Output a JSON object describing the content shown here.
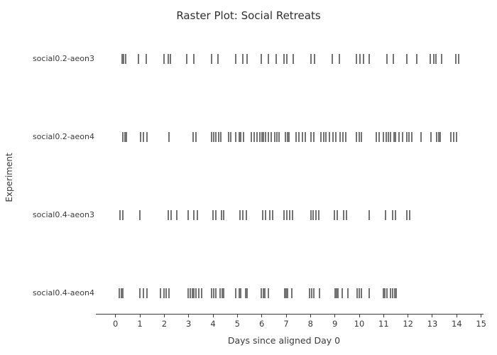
{
  "title": "Raster Plot: Social Retreats",
  "colors": {
    "background": "#ffffff",
    "text": "#3a3a3a",
    "mark": "#282828",
    "spine": "#3a3a3a"
  },
  "chart_data": {
    "type": "scatter",
    "variant": "raster-eventplot",
    "title": "Raster Plot: Social Retreats",
    "xlabel": "Days since aligned Day 0",
    "ylabel": "Experiment",
    "xlim": [
      0,
      15
    ],
    "xticks": [
      0,
      1,
      2,
      3,
      4,
      5,
      6,
      7,
      8,
      9,
      10,
      11,
      12,
      13,
      14,
      15
    ],
    "grid": false,
    "legend": false,
    "series": [
      {
        "name": "social0.2-aeon3",
        "events": [
          0.28,
          0.34,
          0.42,
          0.95,
          1.25,
          1.98,
          2.15,
          2.25,
          2.92,
          3.2,
          3.95,
          4.2,
          4.92,
          5.23,
          5.41,
          5.99,
          6.28,
          6.6,
          6.92,
          7.02,
          7.3,
          8.03,
          8.17,
          8.9,
          9.19,
          9.87,
          10.02,
          10.18,
          10.41,
          11.13,
          11.41,
          11.96,
          12.35,
          12.9,
          13.05,
          13.16,
          13.39,
          13.95,
          14.07
        ]
      },
      {
        "name": "social0.2-aeon4",
        "events": [
          0.31,
          0.38,
          0.45,
          1.02,
          1.14,
          1.28,
          2.2,
          3.17,
          3.29,
          3.93,
          4.02,
          4.12,
          4.22,
          4.31,
          4.63,
          4.73,
          4.92,
          5.07,
          5.15,
          5.24,
          5.58,
          5.7,
          5.81,
          5.91,
          6.0,
          6.08,
          6.16,
          6.28,
          6.4,
          6.53,
          6.62,
          6.72,
          6.96,
          7.05,
          7.11,
          7.4,
          7.52,
          7.66,
          7.79,
          8.03,
          8.15,
          8.42,
          8.53,
          8.64,
          8.78,
          8.92,
          9.05,
          9.21,
          9.34,
          9.46,
          9.87,
          9.99,
          10.1,
          10.7,
          10.82,
          10.99,
          11.11,
          11.2,
          11.28,
          11.42,
          11.5,
          11.63,
          11.77,
          11.96,
          12.05,
          12.15,
          12.54,
          12.93,
          13.17,
          13.25,
          13.32,
          13.75,
          13.88,
          14.0
        ]
      },
      {
        "name": "social0.4-aeon3",
        "events": [
          0.19,
          0.31,
          0.99,
          2.15,
          2.27,
          2.52,
          2.98,
          3.22,
          3.37,
          4.0,
          4.11,
          4.34,
          4.45,
          5.1,
          5.21,
          5.36,
          6.04,
          6.16,
          6.33,
          6.45,
          6.91,
          7.04,
          7.15,
          7.27,
          8.01,
          8.11,
          8.22,
          8.34,
          8.98,
          9.09,
          9.37,
          9.49,
          10.41,
          11.08,
          11.38,
          11.48,
          11.96,
          12.06
        ]
      },
      {
        "name": "social0.4-aeon4",
        "events": [
          0.16,
          0.24,
          0.31,
          0.99,
          1.14,
          1.28,
          1.83,
          1.99,
          2.09,
          2.18,
          2.98,
          3.07,
          3.15,
          3.22,
          3.29,
          3.42,
          3.54,
          3.95,
          4.04,
          4.12,
          4.29,
          4.37,
          4.43,
          4.92,
          5.07,
          5.15,
          5.34,
          5.41,
          5.99,
          6.07,
          6.13,
          6.28,
          6.93,
          7.0,
          7.07,
          7.23,
          7.95,
          8.05,
          8.15,
          8.37,
          9.0,
          9.07,
          9.14,
          9.29,
          9.53,
          9.92,
          10.0,
          10.08,
          10.41,
          10.99,
          11.06,
          11.13,
          11.28,
          11.38,
          11.45,
          11.52
        ]
      }
    ]
  }
}
